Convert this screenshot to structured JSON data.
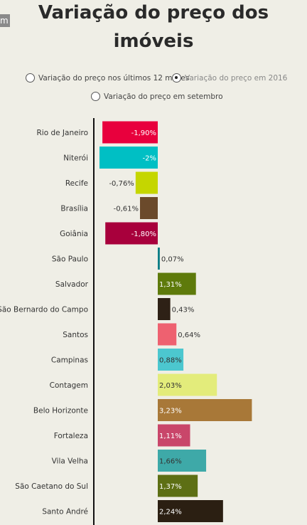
{
  "title_line1": "Variação do preço dos",
  "title_line2": "imóveis",
  "corner_text": "m",
  "options": {
    "opt1": "Variação do preço nos últimos 12 meses",
    "opt2": "Variação do preço em 2016",
    "opt3": "Variação do preço em setembro",
    "selected": "opt2"
  },
  "chart_data": {
    "type": "bar",
    "orientation": "horizontal",
    "title": "",
    "xlabel": "",
    "ylabel": "",
    "categories": [
      "Rio de Janeiro",
      "Niterói",
      "Recife",
      "Brasília",
      "Goiânia",
      "São Paulo",
      "Salvador",
      "São Bernardo do Campo",
      "Santos",
      "Campinas",
      "Contagem",
      "Belo Horizonte",
      "Fortaleza",
      "Vila Velha",
      "São Caetano do Sul",
      "Santo André"
    ],
    "values": [
      -1.9,
      -2.0,
      -0.76,
      -0.61,
      -1.8,
      0.07,
      1.31,
      0.43,
      0.64,
      0.88,
      2.03,
      3.23,
      1.11,
      1.66,
      1.37,
      2.24
    ],
    "labels": [
      "-1,90%",
      "-2%",
      "-0,76%",
      "-0,61%",
      "-1,80%",
      "0,07%",
      "1,31%",
      "0,43%",
      "0,64%",
      "0,88%",
      "2,03%",
      "3,23%",
      "1,11%",
      "1,66%",
      "1,37%",
      "2,24%"
    ],
    "colors": [
      "#e8003d",
      "#00bfc4",
      "#c5d600",
      "#6b4a2b",
      "#a8003c",
      "#0d7e86",
      "#5e7a0b",
      "#2e2116",
      "#ee6170",
      "#4cc7cf",
      "#e3ec7b",
      "#a87838",
      "#c9466a",
      "#3ea9a8",
      "#5d6f14",
      "#2b1f12"
    ],
    "label_colors": [
      "#ffffff",
      "#ffffff",
      "#333333",
      "#333333",
      "#ffffff",
      "#333333",
      "#ffffff",
      "#333333",
      "#333333",
      "#333333",
      "#333333",
      "#ffffff",
      "#ffffff",
      "#333333",
      "#ffffff",
      "#ffffff"
    ],
    "label_inside": [
      true,
      true,
      false,
      false,
      true,
      false,
      true,
      false,
      false,
      true,
      true,
      true,
      true,
      true,
      true,
      true
    ],
    "grid": false
  }
}
